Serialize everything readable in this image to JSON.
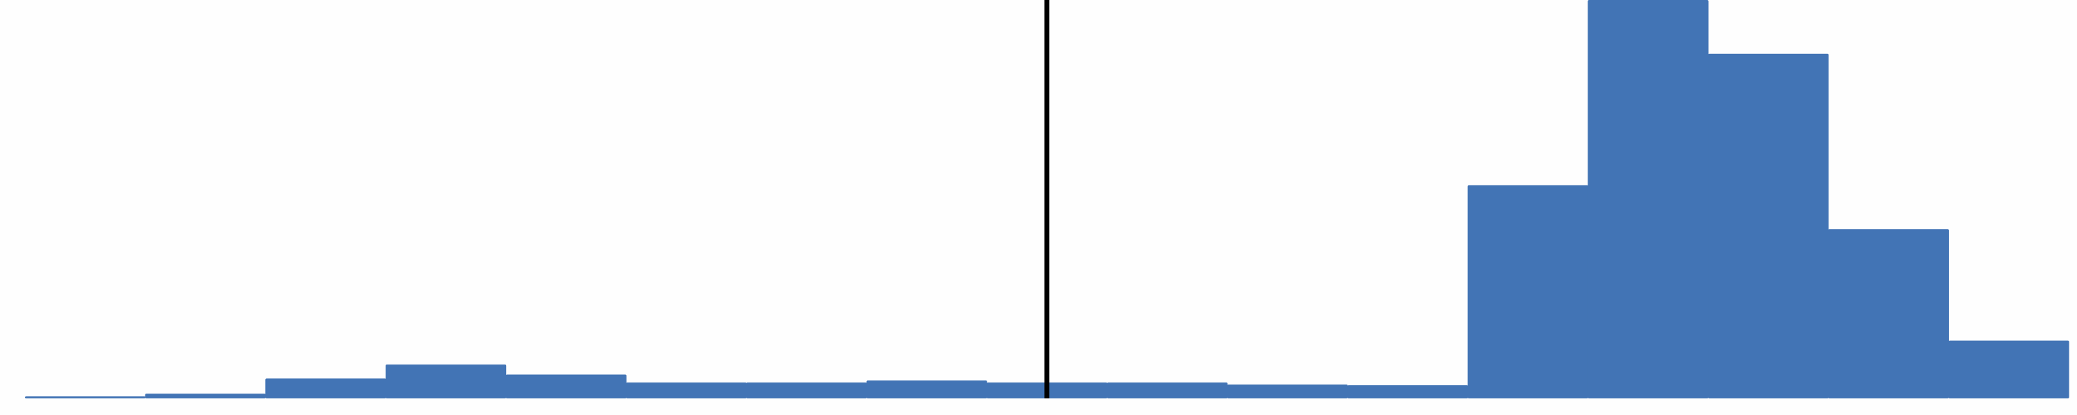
{
  "chart_data": {
    "type": "bar",
    "subtype": "histogram",
    "title": "",
    "xlabel": "",
    "ylabel": "",
    "axes_visible": false,
    "grid": false,
    "bar_color": "#4274b5",
    "reference_line_color": "#000000",
    "reference_line_bin_position": 8.5,
    "ylim": [
      0,
      100
    ],
    "bins": 17,
    "values": [
      0.5,
      1.2,
      5.0,
      8.5,
      6.0,
      4.0,
      4.0,
      4.5,
      4.0,
      4.0,
      3.5,
      3.3,
      53.5,
      100,
      86.5,
      42.5,
      14.5
    ]
  }
}
